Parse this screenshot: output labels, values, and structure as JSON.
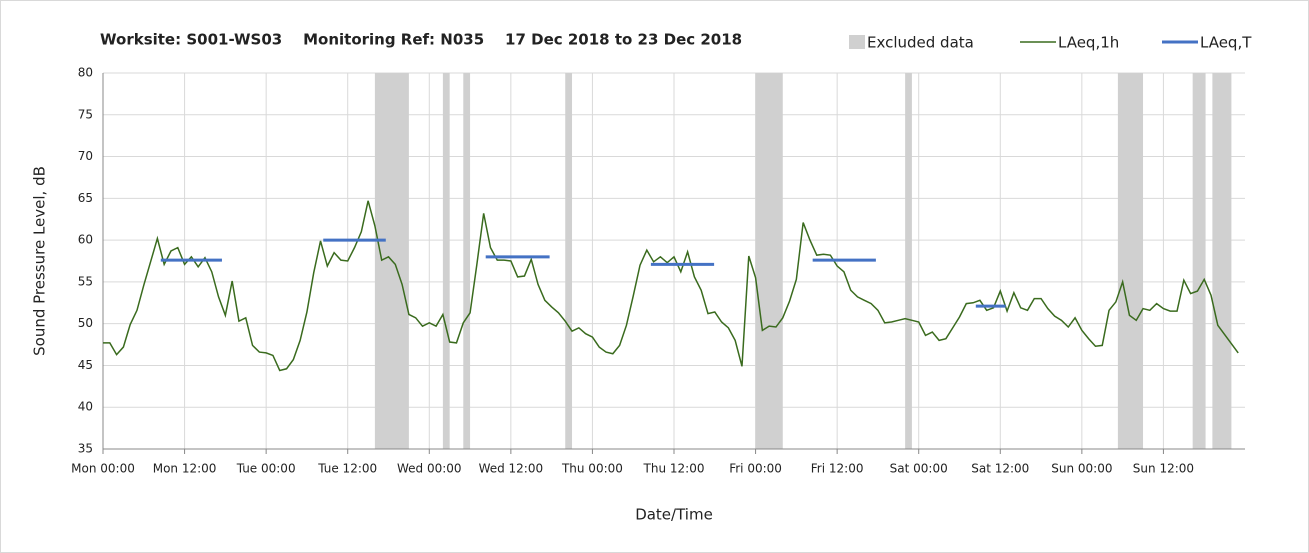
{
  "chart_data": {
    "type": "line",
    "title": "Worksite: S001-WS03    Monitoring Ref: N035    17 Dec 2018 to 23 Dec 2018",
    "xlabel": "Date/Time",
    "ylabel": "Sound Pressure Level, dB",
    "xlim": [
      0,
      168
    ],
    "ylim": [
      35,
      80
    ],
    "yticks": [
      35,
      40,
      45,
      50,
      55,
      60,
      65,
      70,
      75,
      80
    ],
    "xticks": [
      {
        "value": 0,
        "label": "Mon 00:00"
      },
      {
        "value": 12,
        "label": "Mon 12:00"
      },
      {
        "value": 24,
        "label": "Tue 00:00"
      },
      {
        "value": 36,
        "label": "Tue 12:00"
      },
      {
        "value": 48,
        "label": "Wed 00:00"
      },
      {
        "value": 60,
        "label": "Wed 12:00"
      },
      {
        "value": 72,
        "label": "Thu 00:00"
      },
      {
        "value": 84,
        "label": "Thu 12:00"
      },
      {
        "value": 96,
        "label": "Fri 00:00"
      },
      {
        "value": 108,
        "label": "Fri 12:00"
      },
      {
        "value": 120,
        "label": "Sat 00:00"
      },
      {
        "value": 132,
        "label": "Sat 12:00"
      },
      {
        "value": 144,
        "label": "Sun 00:00"
      },
      {
        "value": 156,
        "label": "Sun 12:00"
      }
    ],
    "grid": true,
    "excluded": {
      "name": "Excluded data",
      "color": "#d0d0d0",
      "ranges": [
        [
          40,
          45
        ],
        [
          50,
          51
        ],
        [
          53,
          54
        ],
        [
          68,
          69
        ],
        [
          96,
          100
        ],
        [
          118,
          119
        ],
        [
          149.3,
          153
        ],
        [
          160.3,
          162.2
        ],
        [
          163.2,
          166
        ]
      ]
    },
    "series": [
      {
        "name": "LAeq,1h",
        "color": "#3a6b1e",
        "x": [
          0,
          1,
          2,
          3,
          4,
          5,
          6,
          7,
          8,
          9,
          10,
          11,
          12,
          13,
          14,
          15,
          16,
          17,
          18,
          19,
          20,
          21,
          22,
          23,
          24,
          25,
          26,
          27,
          28,
          29,
          30,
          31,
          32,
          33,
          34,
          35,
          36,
          37,
          38,
          39,
          40,
          41,
          42,
          43,
          44,
          45,
          46,
          47,
          48,
          49,
          50,
          51,
          52,
          53,
          54,
          55,
          56,
          57,
          58,
          59,
          60,
          61,
          62,
          63,
          64,
          65,
          66,
          67,
          68,
          69,
          70,
          71,
          72,
          73,
          74,
          75,
          76,
          77,
          78,
          79,
          80,
          81,
          82,
          83,
          84,
          85,
          86,
          87,
          88,
          89,
          90,
          91,
          92,
          93,
          94,
          95,
          96,
          97,
          98,
          99,
          100,
          101,
          102,
          103,
          104,
          105,
          106,
          107,
          108,
          109,
          110,
          111,
          112,
          113,
          114,
          115,
          116,
          117,
          118,
          119,
          120,
          121,
          122,
          123,
          124,
          125,
          126,
          127,
          128,
          129,
          130,
          131,
          132,
          133,
          134,
          135,
          136,
          137,
          138,
          139,
          140,
          141,
          142,
          143,
          144,
          145,
          146,
          147,
          148,
          149,
          150,
          151,
          152,
          153,
          154,
          155,
          156,
          157,
          158,
          159,
          160,
          161,
          162,
          163,
          164,
          167
        ],
        "values": [
          47.7,
          47.7,
          46.3,
          47.2,
          49.9,
          51.6,
          54.6,
          57.4,
          60.2,
          57.1,
          58.7,
          59.1,
          57.1,
          58,
          56.8,
          57.9,
          56.2,
          53.2,
          51,
          55.1,
          50.3,
          50.7,
          47.4,
          46.6,
          46.5,
          46.2,
          44.4,
          44.6,
          45.7,
          48,
          51.4,
          56.1,
          59.9,
          56.9,
          58.5,
          57.6,
          57.5,
          59.1,
          61,
          64.7,
          61.7,
          57.6,
          58,
          57.1,
          54.7,
          51.1,
          50.7,
          49.7,
          50.1,
          49.7,
          51.1,
          47.8,
          47.7,
          50.1,
          51.3,
          57.1,
          63.2,
          59.1,
          57.6,
          57.6,
          57.5,
          55.6,
          55.7,
          57.7,
          54.7,
          52.8,
          52,
          51.3,
          50.3,
          49.1,
          49.5,
          48.8,
          48.4,
          47.2,
          46.6,
          46.4,
          47.4,
          49.8,
          53.3,
          57,
          58.8,
          57.4,
          58,
          57.3,
          58,
          56.2,
          58.6,
          55.6,
          54,
          51.2,
          51.4,
          50.2,
          49.5,
          48,
          44.9,
          58.1,
          55.5,
          49.2,
          49.7,
          49.6,
          50.7,
          52.7,
          55.3,
          62.1,
          60,
          58.2,
          58.3,
          58.2,
          56.9,
          56.2,
          54,
          53.2,
          52.8,
          52.4,
          51.6,
          50.1,
          50.2,
          50.4,
          50.6,
          50.4,
          50.2,
          48.6,
          49,
          48,
          48.2,
          49.5,
          50.8,
          52.4,
          52.5,
          52.8,
          51.6,
          51.9,
          53.9,
          51.5,
          53.7,
          51.9,
          51.6,
          53,
          53,
          51.8,
          50.9,
          50.4,
          49.6,
          50.7,
          49.2,
          48.2,
          47.3,
          47.4,
          51.6,
          52.6,
          55,
          51,
          50.4,
          51.8,
          51.6,
          52.4,
          51.8,
          51.5,
          51.5,
          55.2,
          53.6,
          53.9,
          55.3,
          53.4,
          49.8,
          46.5
        ]
      },
      {
        "name": "LAeq,T",
        "color": "#4472c4",
        "segments": [
          {
            "x": [
              8.5,
              17.5
            ],
            "value": 57.6
          },
          {
            "x": [
              32.4,
              41.6
            ],
            "value": 60
          },
          {
            "x": [
              56.3,
              65.7
            ],
            "value": 58
          },
          {
            "x": [
              80.6,
              89.9
            ],
            "value": 57.1
          },
          {
            "x": [
              104.4,
              113.7
            ],
            "value": 57.6
          },
          {
            "x": [
              128.4,
              132.8
            ],
            "value": 52.1
          }
        ]
      }
    ]
  }
}
